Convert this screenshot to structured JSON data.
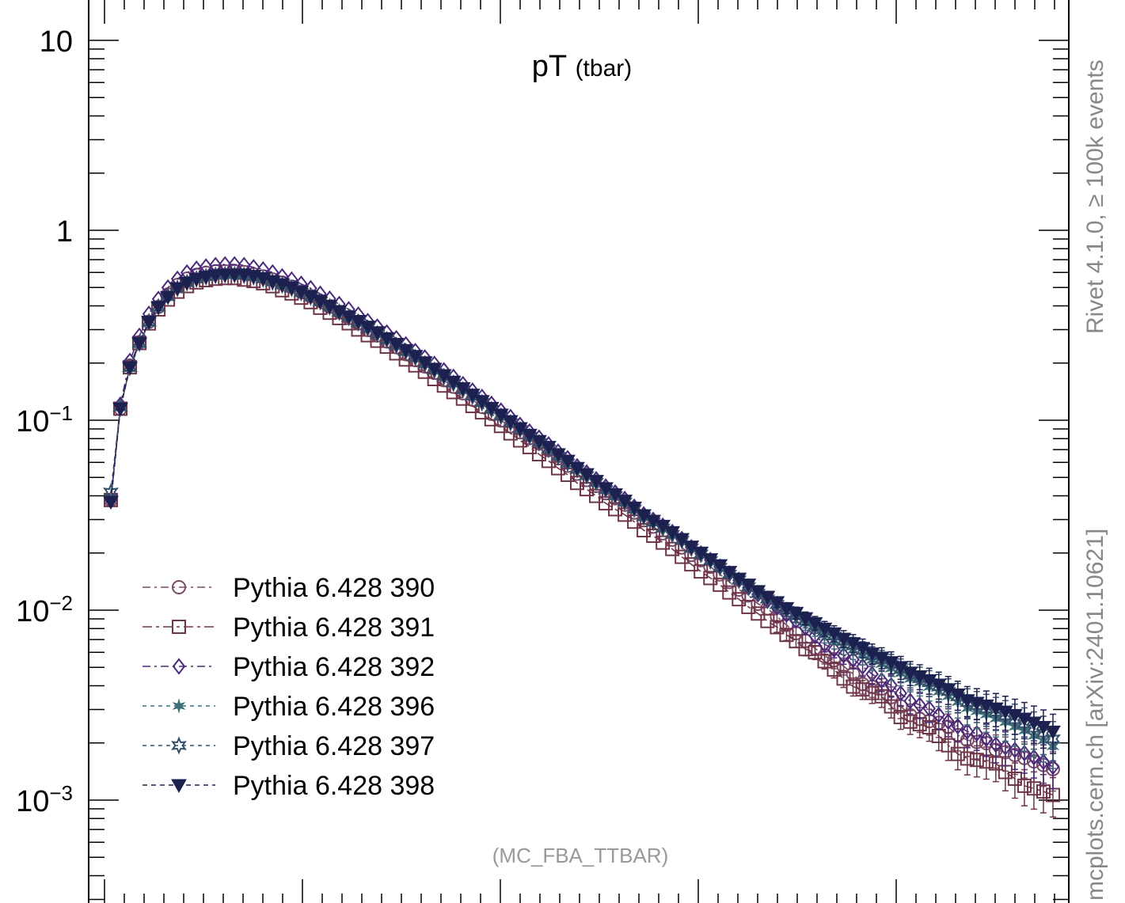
{
  "chart_data": {
    "type": "scatter",
    "title": "pT",
    "title_sub": "(tbar)",
    "analysis": "(MC_FBA_TTBAR)",
    "side_top": "Rivet 4.1.0, ≥ 100k events",
    "side_bottom": "mcplots.cern.ch [arXiv:2401.10621]",
    "yscale": "log",
    "ylim": [
      0.0003,
      20
    ],
    "y_ticks": [
      {
        "value": 10,
        "label": "10",
        "exp": ""
      },
      {
        "value": 1,
        "label": "1",
        "exp": ""
      },
      {
        "value": 0.1,
        "label": "10",
        "exp": "−1"
      },
      {
        "value": 0.01,
        "label": "10",
        "exp": "−2"
      },
      {
        "value": 0.001,
        "label": "10",
        "exp": "−3"
      }
    ],
    "legend_placement": "lower-left",
    "x": [
      1,
      2,
      3,
      4,
      5,
      6,
      7,
      8,
      9,
      10,
      11,
      12,
      13,
      14,
      15,
      16,
      17,
      18,
      19,
      20,
      21,
      22,
      23,
      24,
      25,
      26,
      27,
      28,
      29,
      30,
      31,
      32,
      33,
      34,
      35,
      36,
      37,
      38,
      39,
      40,
      41,
      42,
      43,
      44,
      45,
      46,
      47,
      48,
      49,
      50,
      51,
      52,
      53,
      54,
      55,
      56,
      57,
      58,
      59,
      60,
      61,
      62,
      63,
      64,
      65,
      66,
      67,
      68,
      69,
      70,
      71,
      72,
      73,
      74,
      75,
      76,
      77,
      78,
      79,
      80,
      81,
      82,
      83,
      84,
      85,
      86,
      87,
      88,
      89,
      90,
      91,
      92,
      93,
      94,
      95,
      96,
      97,
      98,
      99,
      100
    ],
    "base_values": [
      0.038,
      0.115,
      0.19,
      0.255,
      0.33,
      0.395,
      0.45,
      0.5,
      0.535,
      0.56,
      0.575,
      0.585,
      0.59,
      0.59,
      0.585,
      0.575,
      0.56,
      0.54,
      0.52,
      0.5,
      0.475,
      0.45,
      0.425,
      0.4,
      0.375,
      0.352,
      0.33,
      0.308,
      0.288,
      0.268,
      0.25,
      0.232,
      0.216,
      0.2,
      0.185,
      0.171,
      0.158,
      0.146,
      0.135,
      0.125,
      0.115,
      0.106,
      0.098,
      0.09,
      0.083,
      0.077,
      0.071,
      0.065,
      0.06,
      0.055,
      0.051,
      0.047,
      0.043,
      0.04,
      0.037,
      0.034,
      0.031,
      0.029,
      0.027,
      0.025,
      0.023,
      0.021,
      0.0195,
      0.018,
      0.0166,
      0.0153,
      0.0141,
      0.013,
      0.012,
      0.0111,
      0.0103,
      0.0095,
      0.0088,
      0.0081,
      0.0075,
      0.0069,
      0.0064,
      0.0059,
      0.0055,
      0.0051,
      0.0047,
      0.0044,
      0.0041,
      0.0038,
      0.0035,
      0.0033,
      0.0031,
      0.0029,
      0.0027,
      0.0025,
      0.0023,
      0.0022,
      0.0021,
      0.002,
      0.0019,
      0.0018,
      0.0017,
      0.0016,
      0.0015,
      0.0014
    ],
    "series": [
      {
        "name": "Pythia 6.428 390",
        "color": "#7a4a6a",
        "marker": "circle-open",
        "dash": "10,5,3,5",
        "scale": [
          1.0,
          1.0,
          1.02,
          1.01,
          1.0,
          1.0,
          1.02,
          1.03,
          1.04,
          1.04,
          1.04,
          1.04,
          1.03,
          1.03,
          1.03,
          1.02,
          1.02,
          1.02,
          1.02,
          1.01,
          1.0,
          1.0,
          1.0,
          0.99,
          0.99,
          0.98,
          0.98,
          0.97,
          0.97,
          0.97,
          0.97,
          0.96,
          0.96,
          0.96,
          0.96,
          0.95,
          0.95,
          0.95,
          0.95,
          0.94,
          0.94,
          0.94,
          0.95,
          0.96,
          0.97,
          0.98,
          0.98,
          0.97,
          0.96,
          0.95,
          0.95,
          0.96,
          0.96,
          0.97,
          0.97,
          0.96,
          0.96,
          0.95,
          0.94,
          0.94,
          0.93,
          0.93,
          0.94,
          0.94,
          0.93,
          0.92,
          0.91,
          0.92,
          0.9,
          0.92,
          0.9,
          0.88,
          0.86,
          0.85,
          0.84,
          0.83,
          0.85,
          0.86,
          0.84,
          0.8,
          0.84,
          0.88,
          0.85,
          0.82,
          0.8,
          0.81,
          0.84,
          0.88,
          0.9,
          0.88,
          0.9,
          0.92,
          0.95,
          0.92,
          0.94,
          0.96,
          0.98,
          1.0,
          1.02,
          1.04
        ]
      },
      {
        "name": "Pythia 6.428 391",
        "color": "#6e3448",
        "marker": "square-open",
        "dash": "12,5,4,5",
        "scale": [
          1.0,
          1.0,
          1.0,
          1.0,
          0.98,
          0.97,
          0.96,
          0.95,
          0.95,
          0.95,
          0.95,
          0.95,
          0.95,
          0.95,
          0.94,
          0.94,
          0.94,
          0.94,
          0.93,
          0.93,
          0.93,
          0.93,
          0.92,
          0.92,
          0.92,
          0.92,
          0.91,
          0.91,
          0.91,
          0.91,
          0.9,
          0.9,
          0.9,
          0.9,
          0.89,
          0.89,
          0.89,
          0.89,
          0.88,
          0.88,
          0.88,
          0.88,
          0.87,
          0.87,
          0.87,
          0.86,
          0.86,
          0.86,
          0.86,
          0.85,
          0.85,
          0.85,
          0.85,
          0.85,
          0.86,
          0.86,
          0.85,
          0.85,
          0.84,
          0.84,
          0.83,
          0.83,
          0.82,
          0.82,
          0.82,
          0.81,
          0.81,
          0.8,
          0.8,
          0.79,
          0.79,
          0.78,
          0.78,
          0.77,
          0.8,
          0.78,
          0.76,
          0.74,
          0.72,
          0.75,
          0.78,
          0.8,
          0.76,
          0.72,
          0.74,
          0.76,
          0.78,
          0.75,
          0.72,
          0.7,
          0.72,
          0.74,
          0.76,
          0.78,
          0.74,
          0.72,
          0.7,
          0.72,
          0.74,
          0.76
        ]
      },
      {
        "name": "Pythia 6.428 392",
        "color": "#4b2a7b",
        "marker": "diamond-open",
        "dash": "10,5,3,5",
        "scale": [
          1.0,
          1.05,
          1.08,
          1.09,
          1.1,
          1.1,
          1.11,
          1.11,
          1.12,
          1.12,
          1.12,
          1.12,
          1.12,
          1.12,
          1.12,
          1.11,
          1.11,
          1.11,
          1.1,
          1.1,
          1.1,
          1.1,
          1.09,
          1.09,
          1.09,
          1.09,
          1.09,
          1.08,
          1.08,
          1.08,
          1.08,
          1.08,
          1.07,
          1.07,
          1.07,
          1.07,
          1.07,
          1.06,
          1.06,
          1.06,
          1.06,
          1.06,
          1.06,
          1.05,
          1.05,
          1.05,
          1.05,
          1.05,
          1.05,
          1.04,
          1.04,
          1.04,
          1.04,
          1.04,
          1.04,
          1.03,
          1.03,
          1.03,
          1.03,
          1.03,
          1.03,
          1.02,
          1.02,
          1.02,
          1.02,
          1.02,
          1.02,
          1.01,
          1.01,
          1.01,
          1.0,
          1.0,
          1.0,
          1.0,
          0.98,
          0.96,
          0.97,
          0.98,
          1.0,
          0.99,
          0.98,
          0.97,
          0.98,
          0.96,
          0.95,
          0.96,
          0.98,
          0.97,
          0.96,
          0.98,
          1.0,
          1.02,
          1.0,
          0.98,
          1.0,
          1.02,
          1.04,
          1.05,
          1.06,
          1.07
        ]
      },
      {
        "name": "Pythia 6.428 396",
        "color": "#3f6f78",
        "marker": "star-solid",
        "dash": "5,5",
        "scale": [
          1.02,
          1.02,
          0.98,
          0.98,
          0.98,
          0.98,
          0.98,
          0.98,
          0.98,
          0.98,
          0.98,
          0.98,
          0.98,
          0.98,
          0.98,
          0.98,
          0.99,
          0.99,
          0.99,
          0.99,
          0.99,
          0.99,
          0.99,
          0.99,
          0.99,
          0.99,
          0.99,
          0.99,
          1.0,
          1.0,
          1.0,
          1.0,
          1.0,
          1.0,
          1.0,
          1.0,
          1.0,
          1.0,
          1.0,
          1.0,
          1.0,
          1.0,
          1.0,
          1.0,
          1.0,
          1.0,
          1.0,
          1.0,
          1.01,
          1.01,
          1.01,
          1.01,
          1.01,
          1.01,
          1.01,
          1.01,
          1.01,
          1.01,
          1.01,
          1.01,
          1.02,
          1.02,
          1.02,
          1.02,
          1.02,
          1.02,
          1.02,
          1.03,
          1.03,
          1.03,
          1.04,
          1.04,
          1.05,
          1.05,
          1.06,
          1.07,
          1.08,
          1.1,
          1.12,
          1.14,
          1.16,
          1.18,
          1.2,
          1.22,
          1.24,
          1.26,
          1.27,
          1.28,
          1.3,
          1.31,
          1.32,
          1.33,
          1.34,
          1.34,
          1.35,
          1.35,
          1.36,
          1.36,
          1.37,
          1.37
        ]
      },
      {
        "name": "Pythia 6.428 397",
        "color": "#35506a",
        "marker": "star-open",
        "dash": "5,5",
        "scale": [
          1.1,
          1.02,
          1.0,
          1.0,
          1.0,
          1.0,
          1.0,
          0.99,
          0.99,
          0.99,
          0.99,
          0.99,
          0.99,
          0.99,
          0.99,
          0.99,
          0.99,
          0.99,
          0.99,
          0.99,
          0.99,
          0.99,
          0.99,
          0.99,
          0.99,
          0.99,
          0.99,
          0.99,
          0.99,
          0.99,
          0.99,
          0.99,
          0.99,
          0.99,
          0.99,
          0.99,
          0.99,
          0.99,
          0.99,
          0.99,
          0.99,
          0.99,
          0.99,
          0.99,
          0.99,
          0.99,
          0.99,
          0.99,
          0.99,
          1.0,
          1.0,
          1.0,
          1.0,
          1.0,
          1.0,
          1.0,
          1.0,
          1.0,
          1.0,
          1.0,
          1.01,
          1.01,
          1.01,
          1.01,
          1.01,
          1.01,
          1.02,
          1.02,
          1.02,
          1.03,
          1.04,
          1.05,
          1.06,
          1.08,
          1.1,
          1.12,
          1.14,
          1.16,
          1.18,
          1.2,
          1.22,
          1.24,
          1.26,
          1.28,
          1.3,
          1.32,
          1.34,
          1.36,
          1.38,
          1.4,
          1.42,
          1.43,
          1.44,
          1.45,
          1.46,
          1.47,
          1.48,
          1.49,
          1.5,
          1.5
        ]
      },
      {
        "name": "Pythia 6.428 398",
        "color": "#1d2150",
        "marker": "triangle-down-solid",
        "dash": "6,5",
        "scale": [
          0.98,
          1.0,
          1.0,
          1.0,
          1.0,
          1.0,
          0.99,
          0.99,
          0.99,
          0.99,
          0.99,
          0.99,
          0.99,
          0.99,
          1.0,
          1.0,
          1.0,
          1.0,
          1.0,
          1.0,
          1.0,
          1.0,
          1.0,
          1.0,
          1.0,
          1.0,
          1.01,
          1.01,
          1.01,
          1.01,
          1.01,
          1.01,
          1.01,
          1.01,
          1.01,
          1.01,
          1.01,
          1.01,
          1.01,
          1.01,
          1.01,
          1.01,
          1.01,
          1.01,
          1.01,
          1.01,
          1.02,
          1.02,
          1.02,
          1.02,
          1.02,
          1.02,
          1.02,
          1.02,
          1.02,
          1.02,
          1.02,
          1.02,
          1.03,
          1.03,
          1.03,
          1.03,
          1.03,
          1.03,
          1.04,
          1.04,
          1.04,
          1.05,
          1.05,
          1.06,
          1.07,
          1.08,
          1.1,
          1.12,
          1.14,
          1.16,
          1.18,
          1.2,
          1.22,
          1.24,
          1.26,
          1.28,
          1.3,
          1.32,
          1.34,
          1.36,
          1.38,
          1.4,
          1.42,
          1.44,
          1.46,
          1.48,
          1.5,
          1.52,
          1.54,
          1.56,
          1.58,
          1.6,
          1.62,
          1.64
        ]
      }
    ]
  }
}
